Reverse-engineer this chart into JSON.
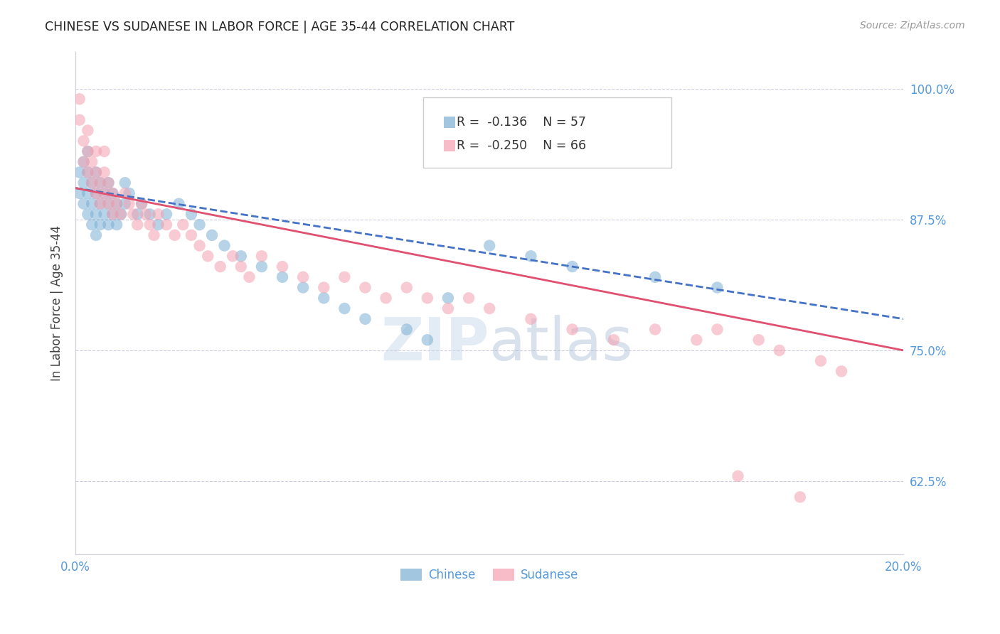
{
  "title": "CHINESE VS SUDANESE IN LABOR FORCE | AGE 35-44 CORRELATION CHART",
  "source": "Source: ZipAtlas.com",
  "ylabel": "In Labor Force | Age 35-44",
  "xlim": [
    0.0,
    0.2
  ],
  "ylim": [
    0.555,
    1.035
  ],
  "yticks": [
    0.625,
    0.75,
    0.875,
    1.0
  ],
  "ytick_labels": [
    "62.5%",
    "75.0%",
    "87.5%",
    "100.0%"
  ],
  "xticks": [
    0.0,
    0.02,
    0.04,
    0.06,
    0.08,
    0.1,
    0.12,
    0.14,
    0.16,
    0.18,
    0.2
  ],
  "xtick_labels": [
    "0.0%",
    "",
    "",
    "",
    "",
    "",
    "",
    "",
    "",
    "",
    "20.0%"
  ],
  "legend_r_chinese": "-0.136",
  "legend_n_chinese": "57",
  "legend_r_sudanese": "-0.250",
  "legend_n_sudanese": "66",
  "chinese_color": "#7BAFD4",
  "sudanese_color": "#F4A0B0",
  "chinese_line_color": "#4472C4",
  "sudanese_line_color": "#E05070",
  "watermark_color": "#C8D8EC",
  "background_color": "#FFFFFF",
  "tick_color": "#5599DD",
  "grid_color": "#CCCCDD",
  "chinese_x": [
    0.001,
    0.001,
    0.002,
    0.002,
    0.002,
    0.003,
    0.003,
    0.003,
    0.003,
    0.004,
    0.004,
    0.004,
    0.005,
    0.005,
    0.005,
    0.005,
    0.006,
    0.006,
    0.006,
    0.007,
    0.007,
    0.008,
    0.008,
    0.008,
    0.009,
    0.009,
    0.01,
    0.01,
    0.011,
    0.012,
    0.012,
    0.013,
    0.015,
    0.016,
    0.018,
    0.02,
    0.022,
    0.025,
    0.028,
    0.03,
    0.033,
    0.036,
    0.04,
    0.045,
    0.05,
    0.055,
    0.06,
    0.065,
    0.07,
    0.08,
    0.085,
    0.09,
    0.1,
    0.11,
    0.12,
    0.14,
    0.155
  ],
  "chinese_y": [
    0.9,
    0.92,
    0.89,
    0.91,
    0.93,
    0.88,
    0.9,
    0.92,
    0.94,
    0.87,
    0.89,
    0.91,
    0.86,
    0.88,
    0.9,
    0.92,
    0.87,
    0.89,
    0.91,
    0.88,
    0.9,
    0.87,
    0.89,
    0.91,
    0.88,
    0.9,
    0.87,
    0.89,
    0.88,
    0.89,
    0.91,
    0.9,
    0.88,
    0.89,
    0.88,
    0.87,
    0.88,
    0.89,
    0.88,
    0.87,
    0.86,
    0.85,
    0.84,
    0.83,
    0.82,
    0.81,
    0.8,
    0.79,
    0.78,
    0.77,
    0.76,
    0.8,
    0.85,
    0.84,
    0.83,
    0.82,
    0.81
  ],
  "sudanese_x": [
    0.001,
    0.001,
    0.002,
    0.002,
    0.003,
    0.003,
    0.003,
    0.004,
    0.004,
    0.005,
    0.005,
    0.005,
    0.006,
    0.006,
    0.007,
    0.007,
    0.007,
    0.008,
    0.008,
    0.009,
    0.009,
    0.01,
    0.011,
    0.012,
    0.013,
    0.014,
    0.015,
    0.016,
    0.017,
    0.018,
    0.019,
    0.02,
    0.022,
    0.024,
    0.026,
    0.028,
    0.03,
    0.032,
    0.035,
    0.038,
    0.04,
    0.042,
    0.045,
    0.05,
    0.055,
    0.06,
    0.065,
    0.07,
    0.075,
    0.08,
    0.085,
    0.09,
    0.095,
    0.1,
    0.11,
    0.12,
    0.13,
    0.14,
    0.15,
    0.155,
    0.16,
    0.165,
    0.17,
    0.175,
    0.18,
    0.185
  ],
  "sudanese_y": [
    0.99,
    0.97,
    0.95,
    0.93,
    0.96,
    0.92,
    0.94,
    0.91,
    0.93,
    0.9,
    0.92,
    0.94,
    0.89,
    0.91,
    0.9,
    0.92,
    0.94,
    0.89,
    0.91,
    0.88,
    0.9,
    0.89,
    0.88,
    0.9,
    0.89,
    0.88,
    0.87,
    0.89,
    0.88,
    0.87,
    0.86,
    0.88,
    0.87,
    0.86,
    0.87,
    0.86,
    0.85,
    0.84,
    0.83,
    0.84,
    0.83,
    0.82,
    0.84,
    0.83,
    0.82,
    0.81,
    0.82,
    0.81,
    0.8,
    0.81,
    0.8,
    0.79,
    0.8,
    0.79,
    0.78,
    0.77,
    0.76,
    0.77,
    0.76,
    0.77,
    0.63,
    0.76,
    0.75,
    0.61,
    0.74,
    0.73
  ]
}
